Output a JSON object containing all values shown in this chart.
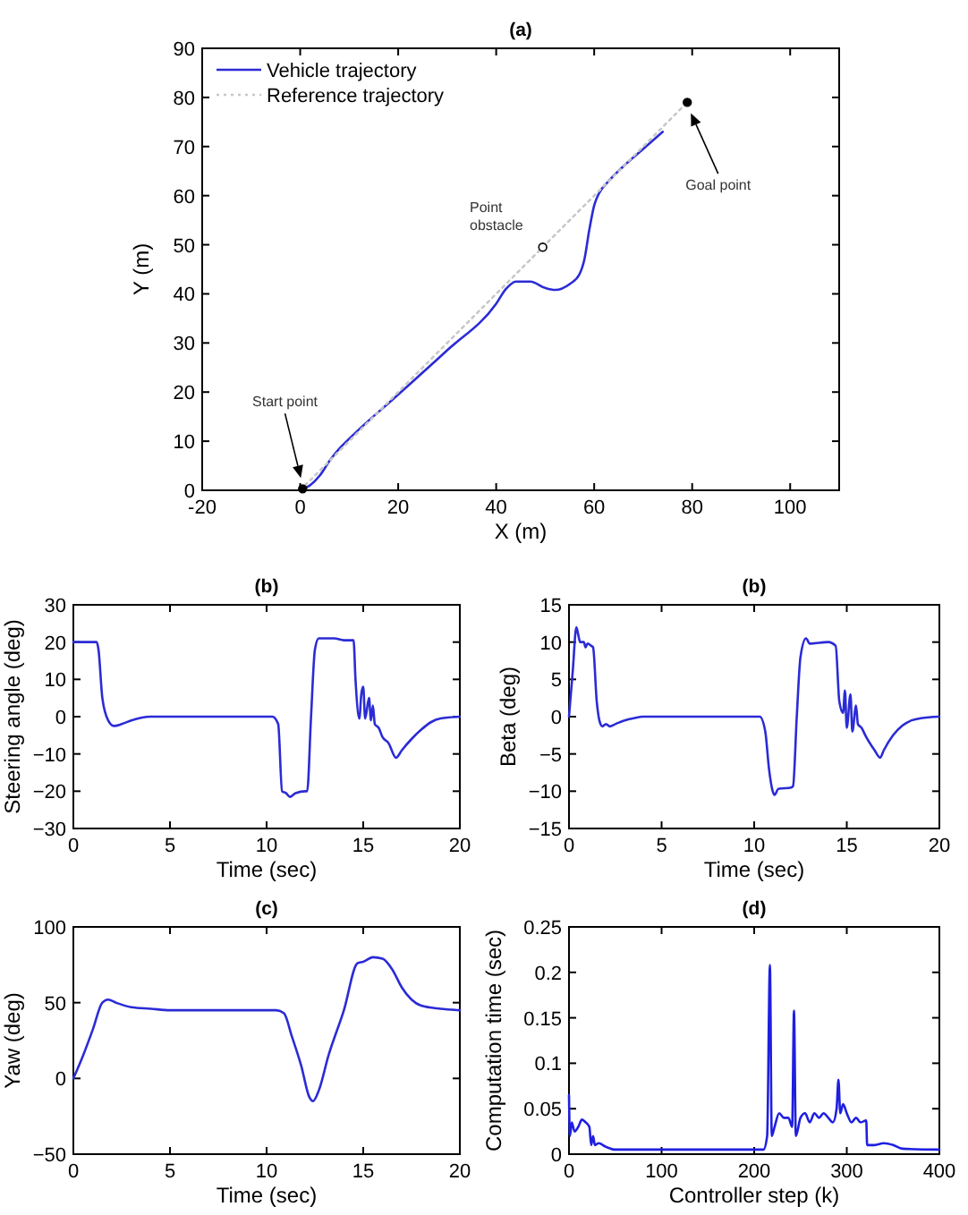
{
  "chart_data": [
    {
      "type": "line",
      "title": "(a)",
      "xlabel": "X (m)",
      "ylabel": "Y (m)",
      "xlim": [
        -20,
        110
      ],
      "ylim": [
        0,
        90
      ],
      "xticks": [
        -20,
        0,
        20,
        40,
        60,
        80,
        100
      ],
      "yticks": [
        0,
        10,
        20,
        30,
        40,
        50,
        60,
        70,
        80,
        90
      ],
      "legend": "top left",
      "series": [
        {
          "name": "Vehicle trajectory",
          "color": "#2b2bd6",
          "x": [
            0,
            2,
            4,
            6,
            8,
            10,
            20,
            30,
            40,
            42,
            44,
            47,
            50,
            52,
            55,
            57,
            58,
            59,
            60,
            61,
            63,
            66,
            70,
            74
          ],
          "values": [
            0,
            1,
            3,
            6,
            8.5,
            10.5,
            19.5,
            28.5,
            38,
            41,
            42.5,
            42.5,
            41.2,
            40.8,
            42,
            44,
            47,
            53,
            58,
            60.5,
            63,
            66,
            69.5,
            73
          ]
        },
        {
          "name": "Reference trajectory",
          "color": "#c8c8c8",
          "line_style": "dotted",
          "x": [
            0,
            79
          ],
          "values": [
            0,
            79
          ]
        },
        {
          "type": "scatter",
          "marker": "circle",
          "color": "#000000",
          "x": [
            0.5,
            79
          ],
          "values": [
            0.3,
            79
          ]
        },
        {
          "type": "scatter",
          "marker": "circle",
          "color": "#ffffff",
          "x": [
            49.5
          ],
          "values": [
            49.5
          ]
        }
      ],
      "annotations": [
        "Start point",
        "Goal point",
        "Point obstacle"
      ]
    },
    {
      "type": "line",
      "title": "(b)",
      "xlabel": "Time (sec)",
      "ylabel": "Steering angle (deg)",
      "xlim": [
        0,
        20
      ],
      "ylim": [
        -30,
        30
      ],
      "xticks": [
        0,
        5,
        10,
        15,
        20
      ],
      "yticks": [
        -30,
        -20,
        -10,
        0,
        10,
        20,
        30
      ],
      "series": [
        {
          "color": "#2b2bd6",
          "x": [
            0,
            1.2,
            1.3,
            1.5,
            1.8,
            2.1,
            2.5,
            3,
            3.5,
            4,
            10.3,
            10.6,
            10.8,
            11,
            11.2,
            11.5,
            12,
            12.1,
            12.3,
            12.5,
            12.7,
            13.5,
            14,
            14.5,
            14.6,
            14.8,
            14.9,
            15,
            15.1,
            15.3,
            15.4,
            15.5,
            15.6,
            15.8,
            16,
            16.3,
            16.7,
            17,
            17.5,
            18,
            18.5,
            19,
            20
          ],
          "values": [
            20,
            20,
            18,
            5,
            -1,
            -2.5,
            -2,
            -1,
            -0.3,
            0,
            0,
            -2,
            -20,
            -20.5,
            -21.5,
            -20.5,
            -20,
            -20,
            0,
            18,
            21,
            21,
            20.5,
            20.5,
            10,
            -0.5,
            6,
            8,
            -0.5,
            5,
            -1,
            3,
            -2,
            -3,
            -5.5,
            -7,
            -11,
            -9,
            -6,
            -3.5,
            -1.5,
            -0.5,
            0
          ]
        }
      ]
    },
    {
      "type": "line",
      "title": "(b)",
      "xlabel": "Time (sec)",
      "ylabel": "Beta (deg)",
      "xlim": [
        0,
        20
      ],
      "ylim": [
        -15,
        15
      ],
      "xticks": [
        0,
        5,
        10,
        15,
        20
      ],
      "yticks": [
        -15,
        -10,
        -5,
        0,
        5,
        10,
        15
      ],
      "series": [
        {
          "color": "#2b2bd6",
          "x": [
            0,
            0.2,
            0.4,
            0.5,
            0.6,
            0.8,
            0.9,
            1,
            1.2,
            1.3,
            1.5,
            1.7,
            1.8,
            2,
            2.2,
            2.5,
            3,
            3.5,
            4,
            10.3,
            10.6,
            10.8,
            11,
            11.1,
            11.3,
            12,
            12.1,
            12.3,
            12.5,
            12.8,
            13,
            14,
            14.4,
            14.6,
            14.8,
            14.9,
            15,
            15.2,
            15.3,
            15.5,
            15.6,
            15.8,
            16,
            16.5,
            16.8,
            17,
            17.5,
            18,
            18.5,
            19,
            20
          ],
          "values": [
            0,
            6,
            12,
            11,
            10,
            10,
            9.3,
            9.8,
            9.5,
            9.3,
            2,
            -1,
            -1.3,
            -1,
            -1.3,
            -1,
            -0.5,
            -0.2,
            0,
            0,
            -2,
            -7,
            -10,
            -10.5,
            -9.7,
            -9.5,
            -9.3,
            0,
            8,
            10.5,
            9.8,
            10,
            9.5,
            2,
            0.5,
            3.5,
            -1.5,
            3,
            -2,
            1.5,
            -1,
            -1.5,
            -2.5,
            -4.5,
            -5.5,
            -4.5,
            -2.5,
            -1.2,
            -0.5,
            -0.2,
            0
          ]
        }
      ]
    },
    {
      "type": "line",
      "title": "(c)",
      "xlabel": "Time (sec)",
      "ylabel": "Yaw (deg)",
      "xlim": [
        0,
        20
      ],
      "ylim": [
        -50,
        100
      ],
      "xticks": [
        0,
        5,
        10,
        15,
        20
      ],
      "yticks": [
        -50,
        0,
        50,
        100
      ],
      "series": [
        {
          "color": "#2b2bd6",
          "x": [
            0,
            0.5,
            1,
            1.5,
            1.8,
            2.2,
            3,
            4,
            5,
            10.5,
            10.9,
            11.3,
            11.8,
            12.2,
            12.4,
            12.7,
            13.2,
            14,
            14.7,
            15,
            15.5,
            16,
            16.5,
            17,
            17.5,
            18,
            19,
            20
          ],
          "values": [
            0,
            15,
            32,
            50,
            52,
            50,
            47,
            46,
            45,
            45,
            43,
            28,
            8,
            -12,
            -15,
            -8,
            15,
            45,
            76,
            77,
            80,
            79,
            72,
            60,
            52,
            48,
            46,
            45
          ]
        }
      ]
    },
    {
      "type": "line",
      "title": "(d)",
      "xlabel": "Controller step (k)",
      "ylabel": "Computation time (sec)",
      "xlim": [
        0,
        400
      ],
      "ylim": [
        0,
        0.25
      ],
      "xticks": [
        0,
        100,
        200,
        300,
        400
      ],
      "yticks": [
        0,
        0.05,
        0.1,
        0.15,
        0.2,
        0.25
      ],
      "series": [
        {
          "color": "#1f1fe0",
          "x": [
            0,
            1,
            3,
            6,
            10,
            14,
            18,
            22,
            24,
            26,
            28,
            32,
            40,
            50,
            210,
            214,
            217,
            219,
            222,
            227,
            232,
            237,
            241,
            243,
            245,
            250,
            255,
            260,
            265,
            270,
            275,
            280,
            285,
            289,
            291,
            293,
            296,
            300,
            305,
            310,
            315,
            321,
            322,
            330,
            340,
            350,
            360,
            400
          ],
          "values": [
            0.065,
            0.02,
            0.035,
            0.025,
            0.03,
            0.038,
            0.035,
            0.03,
            0.01,
            0.02,
            0.01,
            0.012,
            0.008,
            0.005,
            0.005,
            0.02,
            0.208,
            0.02,
            0.03,
            0.045,
            0.04,
            0.04,
            0.03,
            0.158,
            0.02,
            0.04,
            0.045,
            0.035,
            0.045,
            0.04,
            0.045,
            0.04,
            0.035,
            0.05,
            0.082,
            0.045,
            0.055,
            0.045,
            0.035,
            0.04,
            0.035,
            0.037,
            0.01,
            0.01,
            0.012,
            0.01,
            0.006,
            0.005
          ]
        }
      ]
    }
  ]
}
